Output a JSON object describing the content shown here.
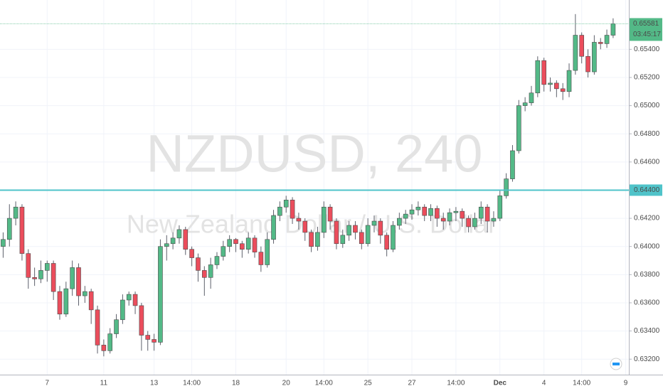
{
  "chart_data": {
    "type": "candlestick",
    "title": "NZDUSD, 240",
    "subtitle": "New Zealand Dollar / U.S. Dollar",
    "categories": [
      null,
      null,
      null,
      null,
      null,
      null,
      null,
      "7",
      null,
      null,
      null,
      null,
      null,
      null,
      null,
      null,
      "11",
      null,
      null,
      null,
      null,
      null,
      null,
      null,
      "13",
      null,
      null,
      null,
      null,
      null,
      "14:00",
      null,
      null,
      null,
      null,
      null,
      null,
      "18",
      null,
      null,
      null,
      null,
      null,
      null,
      null,
      "20",
      null,
      null,
      null,
      null,
      null,
      "14:00",
      null,
      null,
      null,
      null,
      null,
      null,
      "25",
      null,
      null,
      null,
      null,
      null,
      null,
      "27",
      null,
      null,
      null,
      null,
      null,
      null,
      "14:00",
      null,
      null,
      null,
      null,
      null,
      null,
      "Dec",
      null,
      null,
      null,
      null,
      null,
      null,
      "4",
      null,
      null,
      null,
      null,
      null,
      "14:00",
      null,
      null,
      null,
      null,
      null,
      null,
      "9"
    ],
    "open": [
      0.64,
      0.6405,
      0.642,
      0.6428,
      0.6395,
      0.6378,
      0.6377,
      0.6383,
      0.6388,
      0.6368,
      0.6352,
      0.637,
      0.6385,
      0.6365,
      0.6368,
      0.6355,
      0.633,
      0.6326,
      0.6338,
      0.6348,
      0.6362,
      0.6366,
      0.6358,
      0.6337,
      0.6334,
      0.6332,
      0.64,
      0.6402,
      0.6406,
      0.6412,
      0.6398,
      0.6392,
      0.6383,
      0.6378,
      0.6387,
      0.6393,
      0.64,
      0.6405,
      0.6402,
      0.6398,
      0.6406,
      0.6396,
      0.6387,
      0.6405,
      0.6422,
      0.6428,
      0.6433,
      0.642,
      0.6418,
      0.641,
      0.64,
      0.641,
      0.6428,
      0.6418,
      0.6402,
      0.6408,
      0.6415,
      0.641,
      0.6402,
      0.6415,
      0.6418,
      0.6408,
      0.6398,
      0.6415,
      0.642,
      0.6423,
      0.6426,
      0.6428,
      0.6422,
      0.6427,
      0.642,
      0.6418,
      0.6424,
      0.6425,
      0.642,
      0.6414,
      0.642,
      0.6428,
      0.6418,
      0.642,
      0.6436,
      0.6448,
      0.6468,
      0.65,
      0.6502,
      0.6509,
      0.6532,
      0.6515,
      0.6516,
      0.6512,
      0.651,
      0.6525,
      0.655,
      0.6535,
      0.6524,
      0.6545,
      0.6544,
      0.655,
      null,
      null
    ],
    "high": [
      0.641,
      0.643,
      0.6432,
      0.643,
      0.6398,
      0.6385,
      0.639,
      0.639,
      0.639,
      0.6372,
      0.6375,
      0.639,
      0.6388,
      0.6372,
      0.637,
      0.6358,
      0.6334,
      0.6342,
      0.6352,
      0.6366,
      0.6368,
      0.6368,
      0.636,
      0.634,
      0.6338,
      0.6405,
      0.6408,
      0.641,
      0.6415,
      0.6414,
      0.64,
      0.6395,
      0.6386,
      0.6392,
      0.6396,
      0.6404,
      0.6408,
      0.6406,
      0.6404,
      0.641,
      0.6408,
      0.64,
      0.641,
      0.6426,
      0.6432,
      0.6436,
      0.6435,
      0.6424,
      0.642,
      0.6412,
      0.6414,
      0.6432,
      0.643,
      0.642,
      0.6412,
      0.6418,
      0.6418,
      0.6412,
      0.642,
      0.6422,
      0.642,
      0.641,
      0.6418,
      0.6424,
      0.6426,
      0.643,
      0.6432,
      0.643,
      0.643,
      0.6429,
      0.6424,
      0.6427,
      0.6428,
      0.6427,
      0.6422,
      0.6424,
      0.6432,
      0.643,
      0.6425,
      0.644,
      0.6452,
      0.6472,
      0.6504,
      0.6506,
      0.6514,
      0.6535,
      0.6534,
      0.652,
      0.6518,
      0.6516,
      0.653,
      0.6565,
      0.6552,
      0.654,
      0.655,
      0.6548,
      0.6554,
      0.6562,
      null,
      null
    ],
    "low": [
      0.6392,
      0.64,
      0.6415,
      0.639,
      0.637,
      0.6372,
      0.6374,
      0.6375,
      0.6362,
      0.6348,
      0.635,
      0.6365,
      0.6358,
      0.636,
      0.6345,
      0.6324,
      0.6322,
      0.6324,
      0.6335,
      0.6345,
      0.6358,
      0.6352,
      0.6326,
      0.6326,
      0.6326,
      0.633,
      0.639,
      0.6398,
      0.6402,
      0.6394,
      0.6386,
      0.6375,
      0.6365,
      0.637,
      0.6384,
      0.639,
      0.6396,
      0.6396,
      0.6392,
      0.6395,
      0.6392,
      0.6382,
      0.6385,
      0.6402,
      0.6418,
      0.6424,
      0.6416,
      0.6412,
      0.6404,
      0.6396,
      0.6397,
      0.6406,
      0.6412,
      0.6398,
      0.6399,
      0.6404,
      0.6405,
      0.6398,
      0.64,
      0.641,
      0.6402,
      0.6393,
      0.6396,
      0.6412,
      0.6416,
      0.6419,
      0.6422,
      0.6418,
      0.6418,
      0.6414,
      0.6412,
      0.6415,
      0.6418,
      0.6414,
      0.641,
      0.6412,
      0.6416,
      0.641,
      0.6414,
      0.6418,
      0.6434,
      0.6446,
      0.6466,
      0.6496,
      0.65,
      0.6506,
      0.651,
      0.651,
      0.6506,
      0.6504,
      0.6506,
      0.6522,
      0.653,
      0.652,
      0.6522,
      0.654,
      0.6541,
      0.6548,
      null,
      null
    ],
    "close": [
      0.6405,
      0.642,
      0.6428,
      0.6395,
      0.6378,
      0.6377,
      0.6383,
      0.6388,
      0.6368,
      0.6352,
      0.637,
      0.6385,
      0.6365,
      0.6368,
      0.6355,
      0.633,
      0.6326,
      0.6338,
      0.6348,
      0.6362,
      0.6366,
      0.6358,
      0.6337,
      0.6334,
      0.6332,
      0.64,
      0.6402,
      0.6406,
      0.6412,
      0.6398,
      0.6392,
      0.6383,
      0.6378,
      0.6387,
      0.6393,
      0.64,
      0.6405,
      0.6402,
      0.6398,
      0.6406,
      0.6396,
      0.6387,
      0.6405,
      0.6422,
      0.6428,
      0.6433,
      0.642,
      0.6418,
      0.641,
      0.64,
      0.641,
      0.6428,
      0.6418,
      0.6402,
      0.6408,
      0.6415,
      0.641,
      0.6402,
      0.6415,
      0.6418,
      0.6408,
      0.6398,
      0.6415,
      0.642,
      0.6423,
      0.6426,
      0.6428,
      0.6422,
      0.6427,
      0.642,
      0.6418,
      0.6424,
      0.6425,
      0.642,
      0.6414,
      0.642,
      0.6428,
      0.6418,
      0.642,
      0.6436,
      0.6448,
      0.6468,
      0.65,
      0.6502,
      0.6509,
      0.6532,
      0.6515,
      0.6516,
      0.6512,
      0.651,
      0.6525,
      0.655,
      0.6535,
      0.6524,
      0.6545,
      0.6544,
      0.655,
      0.65581,
      null,
      null
    ],
    "up_color": "#53b987",
    "down_color": "#eb4d5c",
    "ylim": [
      0.6309,
      0.6575
    ],
    "yticks": [
      {
        "value": 0.632,
        "label": "0.63200"
      },
      {
        "value": 0.634,
        "label": "0.63400"
      },
      {
        "value": 0.636,
        "label": "0.63600"
      },
      {
        "value": 0.638,
        "label": "0.63800"
      },
      {
        "value": 0.64,
        "label": "0.64000"
      },
      {
        "value": 0.642,
        "label": "0.64200"
      },
      {
        "value": 0.646,
        "label": "0.64600"
      },
      {
        "value": 0.648,
        "label": "0.64800"
      },
      {
        "value": 0.65,
        "label": "0.65000"
      },
      {
        "value": 0.652,
        "label": "0.65200"
      },
      {
        "value": 0.654,
        "label": "0.65400"
      }
    ],
    "horizontal_line": {
      "value": 0.644,
      "label": "0.64400",
      "color": "#4fc3c9"
    },
    "last_price": {
      "value": 0.65581,
      "label": "0.65581",
      "countdown": "03:45:17",
      "color": "#53b987"
    },
    "grid": true
  }
}
